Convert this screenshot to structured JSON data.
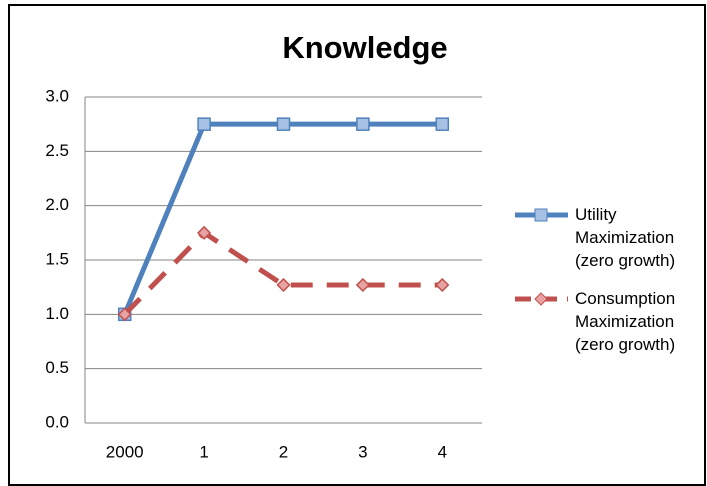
{
  "chart_data": {
    "type": "line",
    "title": "Knowledge",
    "categories": [
      "2000",
      "1",
      "2",
      "3",
      "4"
    ],
    "series": [
      {
        "name": "Utility Maximization (zero growth)",
        "color": "#4f81bd",
        "values": [
          1.0,
          2.75,
          2.75,
          2.75,
          2.75
        ]
      },
      {
        "name": "Consumption Maximization (zero growth)",
        "color": "#c0504d",
        "values": [
          1.0,
          1.75,
          1.27,
          1.27,
          1.27
        ]
      }
    ],
    "ylim": [
      0,
      3
    ],
    "yticks": [
      {
        "value": 0,
        "label": "0.0"
      },
      0.5,
      {
        "value": 1,
        "label": "1.0"
      },
      1.5,
      {
        "value": 2,
        "label": "2.0"
      },
      2.5,
      {
        "value": 3,
        "label": "3.0"
      }
    ],
    "grid": true,
    "legend": "right"
  }
}
